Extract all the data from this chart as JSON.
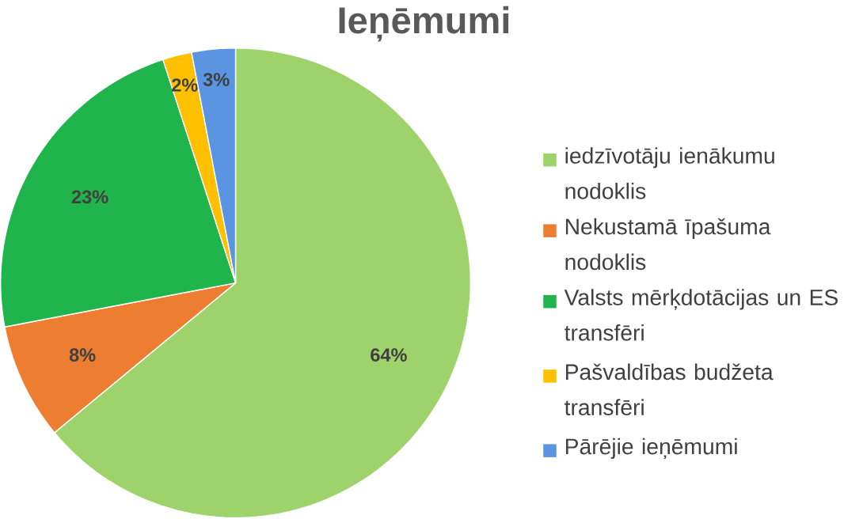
{
  "chart_data": {
    "type": "pie",
    "title": "Ieņēmumi",
    "categories": [
      "iedzīvotāju ienākumu nodoklis",
      "Nekustamā īpašuma nodoklis",
      "Valsts mērķdotācijas un ES transfēri",
      "Pašvaldības budžeta transfēri",
      "Pārējie ieņēmumi"
    ],
    "values": [
      64,
      8,
      23,
      2,
      3
    ],
    "colors": [
      "#9ed26a",
      "#ed7d31",
      "#1fb44c",
      "#ffc000",
      "#5b94e0"
    ],
    "value_labels": [
      "64%",
      "8%",
      "23%",
      "2%",
      "3%"
    ],
    "legend": "right"
  }
}
